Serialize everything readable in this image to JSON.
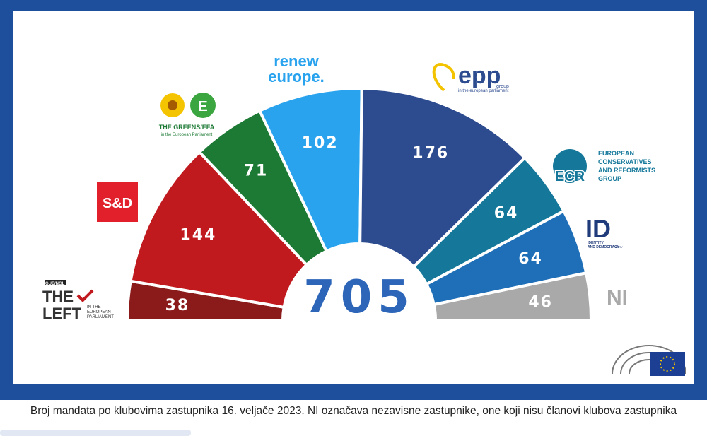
{
  "chart_data": {
    "type": "pie",
    "subtype": "parliament-semicircle",
    "total": "705",
    "series": [
      {
        "name": "THE LEFT",
        "value": 38,
        "label": "38",
        "color": "#8b1a1a"
      },
      {
        "name": "S&D",
        "value": 144,
        "label": "144",
        "color": "#c0191e"
      },
      {
        "name": "THE GREENS/EFA",
        "value": 71,
        "label": "71",
        "color": "#1d7a35"
      },
      {
        "name": "renew europe.",
        "value": 102,
        "label": "102",
        "color": "#2aa3ef"
      },
      {
        "name": "epp",
        "value": 176,
        "label": "176",
        "color": "#2d4b8f"
      },
      {
        "name": "ECR",
        "value": 64,
        "label": "64",
        "color": "#15789a"
      },
      {
        "name": "ID",
        "value": 64,
        "label": "64",
        "color": "#1f6fb8"
      },
      {
        "name": "NI",
        "value": 46,
        "label": "46",
        "color": "#a9a9a9"
      }
    ]
  },
  "logos": {
    "left": {
      "top": "GUE/NGL",
      "main1": "THE",
      "main2": "LEFT",
      "sub1": "IN THE",
      "sub2": "EUROPEAN",
      "sub3": "PARLIAMENT"
    },
    "sd": {
      "text": "S&D"
    },
    "greens": {
      "main": "THE GREENS/EFA",
      "sub": "in the European Parliament"
    },
    "renew": {
      "line1": "renew",
      "line2": "europe."
    },
    "epp": {
      "main": "epp",
      "group": "group",
      "sub": "in the european parliament"
    },
    "ecr": {
      "abbr": "ECR",
      "line1": "EUROPEAN",
      "line2": "CONSERVATIVES",
      "line3": "AND REFORMISTS",
      "line4": "GROUP"
    },
    "id": {
      "abbr": "ID",
      "line1": "IDENTITY",
      "line2": "AND DEMOCRACY",
      "line3": "PARTY"
    },
    "ni": {
      "text": "NI"
    }
  },
  "colors": {
    "frame": "#1d4f9c",
    "ep_flag": "#1d3f93"
  },
  "caption": "Broj mandata po klubovima zastupnika 16. veljače 2023. NI označava nezavisne zastupnike, one koji nisu članovi klubova zastupnika"
}
